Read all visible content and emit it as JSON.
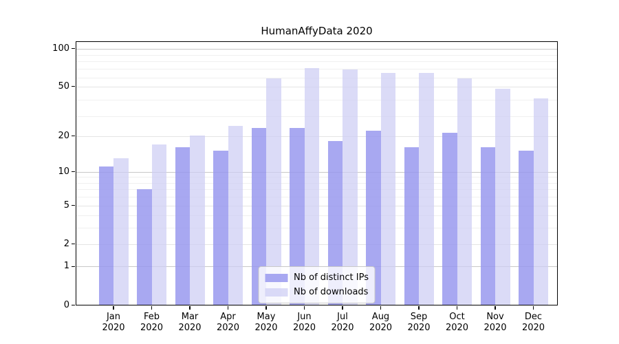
{
  "title": "HumanAffyData 2020",
  "chart_data": {
    "type": "bar",
    "title": "HumanAffyData 2020",
    "categories": [
      "Jan",
      "Feb",
      "Mar",
      "Apr",
      "May",
      "Jun",
      "Jul",
      "Aug",
      "Sep",
      "Oct",
      "Nov",
      "Dec"
    ],
    "category_year_line": "2020",
    "series": [
      {
        "name": "Nb of distinct IPs",
        "color": "rgba(150,150,238,0.83)",
        "values": [
          11,
          7,
          16,
          15,
          23,
          23,
          18,
          22,
          16,
          21,
          16,
          15
        ]
      },
      {
        "name": "Nb of downloads",
        "color": "rgba(206,206,244,0.73)",
        "values": [
          13,
          17,
          20,
          24,
          58,
          70,
          68,
          64,
          64,
          58,
          48,
          40
        ]
      }
    ],
    "y_scale": "log10(1+x)",
    "y_tick_values": [
      0,
      1,
      2,
      5,
      10,
      20,
      50,
      100
    ],
    "y_range": [
      0,
      113
    ],
    "xlabel": "",
    "ylabel": "",
    "grid": "on",
    "legend_position": "lower center"
  }
}
